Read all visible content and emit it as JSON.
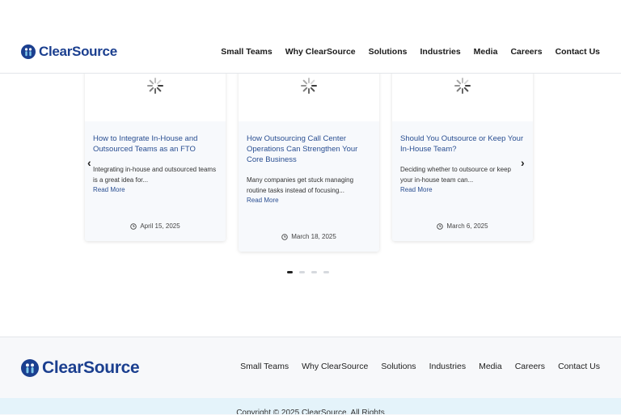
{
  "header": {
    "logo": "ClearSource",
    "nav": [
      "Small Teams",
      "Why ClearSource",
      "Solutions",
      "Industries",
      "Media",
      "Careers",
      "Contact Us"
    ]
  },
  "posts": [
    {
      "title": "How to Integrate In-House and Outsourced Teams as an FTO",
      "excerpt": "Integrating in-house and outsourced teams is a great idea for...",
      "read_more": "Read More",
      "date": "April 15, 2025"
    },
    {
      "title": "How Outsourcing Call Center Operations Can Strengthen Your Core Business",
      "excerpt": "Many companies get stuck managing routine tasks instead of focusing...",
      "read_more": "Read More",
      "date": "March 18, 2025"
    },
    {
      "title": "Should You Outsource or Keep Your In-House Team?",
      "excerpt": "Deciding whether to outsource or keep your in-house team can...",
      "read_more": "Read More",
      "date": "March 6, 2025"
    }
  ],
  "footer": {
    "logo": "ClearSource",
    "nav": [
      "Small Teams",
      "Why ClearSource",
      "Solutions",
      "Industries",
      "Media",
      "Careers",
      "Contact Us"
    ],
    "copyright": "Copyright © 2025 ClearSource. All Rights"
  }
}
